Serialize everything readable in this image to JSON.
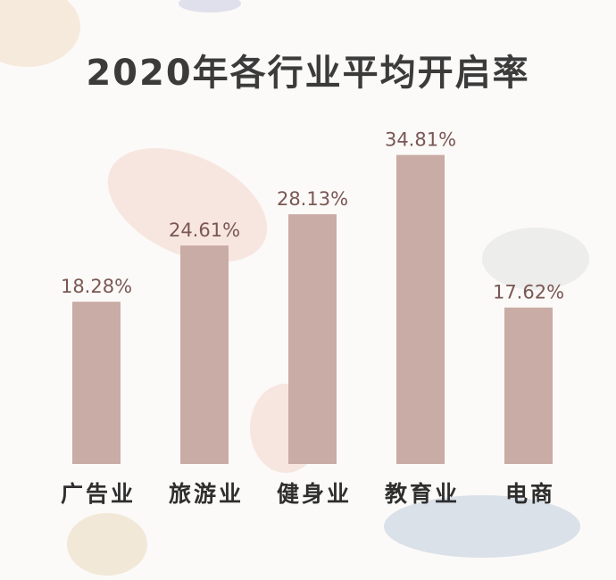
{
  "chart_data": {
    "type": "bar",
    "title": "2020年各行业平均开启率",
    "categories": [
      "广告业",
      "旅游业",
      "健身业",
      "教育业",
      "电商"
    ],
    "values": [
      18.28,
      24.61,
      28.13,
      34.81,
      17.62
    ],
    "value_labels": [
      "18.28%",
      "24.61%",
      "28.13%",
      "34.81%",
      "17.62%"
    ],
    "color": "#c9aca5"
  }
}
